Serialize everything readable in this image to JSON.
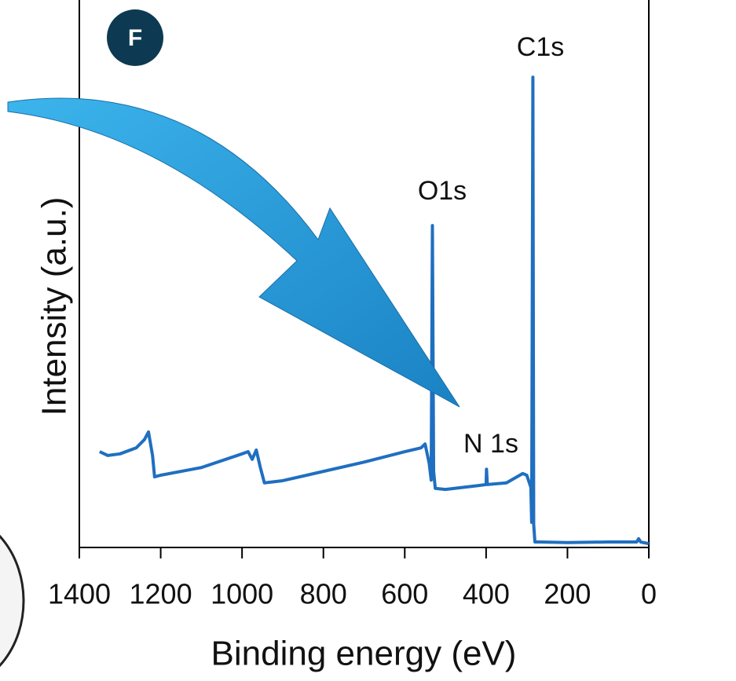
{
  "chart_data": {
    "type": "line",
    "panel_label": "F",
    "x_label": "Binding energy (eV)",
    "y_label": "Intensity (a.u.)",
    "xlim": [
      1400,
      0
    ],
    "xticks": [
      1400,
      1200,
      1000,
      800,
      600,
      400,
      200,
      0
    ],
    "ylim": [
      0,
      100
    ],
    "annotations": [
      "C1s",
      "O1s",
      "N 1s"
    ],
    "series": [
      {
        "color": "#1f6fc0",
        "x": [
          1350,
          1330,
          1300,
          1260,
          1240,
          1230,
          1220,
          1215,
          1200,
          1100,
          1000,
          985,
          975,
          965,
          955,
          945,
          900,
          800,
          700,
          600,
          560,
          550,
          540,
          535,
          532,
          529,
          525,
          500,
          420,
          400,
          399,
          397,
          350,
          310,
          300,
          290,
          288,
          285,
          283,
          280,
          270,
          200,
          100,
          30,
          25,
          20,
          0
        ],
        "values": [
          17.5,
          16.8,
          17.1,
          18.2,
          19.7,
          21.1,
          16.8,
          12.9,
          13.2,
          14.6,
          17.1,
          17.5,
          16.1,
          17.8,
          14.6,
          11.8,
          12.2,
          13.9,
          15.6,
          17.5,
          18.2,
          18.9,
          15.4,
          12.3,
          58.8,
          13.9,
          10.8,
          10.6,
          11.3,
          11.5,
          14.3,
          11.5,
          11.8,
          13.5,
          13.2,
          11.0,
          4.6,
          85.9,
          4.2,
          1.0,
          1.0,
          0.9,
          1.0,
          1.0,
          1.6,
          1.0,
          0.7
        ]
      }
    ]
  }
}
